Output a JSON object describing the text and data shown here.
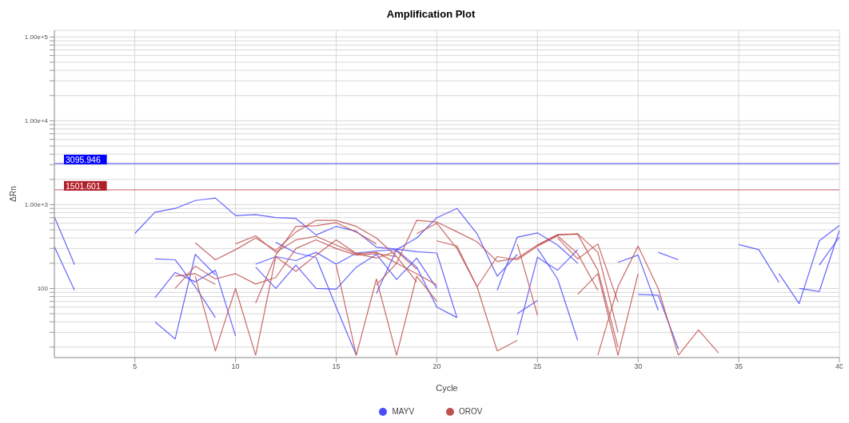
{
  "chart_data": {
    "type": "line",
    "title": "Amplification Plot",
    "xlabel": "Cycle",
    "ylabel": "ΔRn",
    "log": "y",
    "grid": true,
    "legend": "bottom",
    "marker": "none",
    "line_style": "solid",
    "xlim": [
      1,
      40
    ],
    "xticks": [
      5,
      10,
      15,
      20,
      25,
      30,
      35,
      40
    ],
    "ylim": [
      15,
      120000
    ],
    "yticks": [
      {
        "value": 20,
        "label": null
      },
      {
        "value": 30,
        "label": null
      },
      {
        "value": 40,
        "label": null
      },
      {
        "value": 50,
        "label": null
      },
      {
        "value": 60,
        "label": null
      },
      {
        "value": 70,
        "label": null
      },
      {
        "value": 80,
        "label": null
      },
      {
        "value": 90,
        "label": null
      },
      100,
      {
        "value": 200,
        "label": null
      },
      {
        "value": 300,
        "label": null
      },
      {
        "value": 400,
        "label": null
      },
      {
        "value": 500,
        "label": null
      },
      {
        "value": 600,
        "label": null
      },
      {
        "value": 700,
        "label": null
      },
      {
        "value": 800,
        "label": null
      },
      {
        "value": 900,
        "label": null
      },
      {
        "value": 1000,
        "label": "1.00e+3"
      },
      {
        "value": 2000,
        "label": null
      },
      {
        "value": 3000,
        "label": null
      },
      {
        "value": 4000,
        "label": null
      },
      {
        "value": 5000,
        "label": null
      },
      {
        "value": 6000,
        "label": null
      },
      {
        "value": 7000,
        "label": null
      },
      {
        "value": 8000,
        "label": null
      },
      {
        "value": 9000,
        "label": null
      },
      {
        "value": 10000,
        "label": "1.00e+4"
      },
      {
        "value": 20000,
        "label": null
      },
      {
        "value": 30000,
        "label": null
      },
      {
        "value": 40000,
        "label": null
      },
      {
        "value": 50000,
        "label": null
      },
      {
        "value": 60000,
        "label": null
      },
      {
        "value": 70000,
        "label": null
      },
      {
        "value": 80000,
        "label": null
      },
      {
        "value": 90000,
        "label": null
      },
      {
        "value": 100000,
        "label": "1.00e+5"
      }
    ],
    "ref_lines": [
      {
        "axis": "y",
        "value": 3095.946,
        "label": "3095.946",
        "color": "#0000ff"
      },
      {
        "axis": "y",
        "value": 1501.601,
        "label": "1501.601",
        "color": "#b0202a"
      }
    ],
    "series": [
      {
        "name": "MAYV",
        "color": "#4a4aff",
        "x": [
          5,
          6,
          7,
          8,
          9,
          10,
          11,
          12,
          13,
          14,
          15,
          16,
          17,
          18,
          19,
          20,
          21
        ],
        "values": [
          453,
          813,
          900,
          1120,
          1200,
          740,
          760,
          700,
          685,
          435,
          550,
          480,
          310,
          295,
          275,
          265,
          45
        ]
      },
      {
        "color": "#4a4aff",
        "x": [
          1,
          2
        ],
        "values": [
          716,
          193
        ]
      },
      {
        "color": "#4a4aff",
        "x": [
          1,
          2
        ],
        "values": [
          316,
          95
        ]
      },
      {
        "color": "#4a4aff",
        "x": [
          6,
          7,
          8,
          9
        ],
        "values": [
          225,
          220,
          105,
          45
        ]
      },
      {
        "color": "#4a4aff",
        "x": [
          6,
          7,
          8,
          9,
          10
        ],
        "values": [
          78,
          155,
          120,
          165,
          27
        ]
      },
      {
        "color": "#4a4aff",
        "x": [
          6,
          7,
          8,
          9
        ],
        "values": [
          40,
          25,
          255,
          145
        ]
      },
      {
        "color": "#4a4aff",
        "x": [
          11,
          12,
          13,
          14,
          15,
          16,
          17,
          18,
          19,
          20,
          21
        ],
        "values": [
          195,
          240,
          215,
          270,
          195,
          265,
          280,
          290,
          180,
          60,
          45
        ]
      },
      {
        "color": "#4a4aff",
        "x": [
          11,
          12,
          13,
          14,
          15,
          16,
          17,
          18,
          19,
          20
        ],
        "values": [
          180,
          100,
          190,
          100,
          98,
          180,
          255,
          128,
          230,
          100
        ]
      },
      {
        "color": "#4a4aff",
        "x": [
          12,
          13,
          14,
          15,
          16
        ],
        "values": [
          355,
          265,
          235,
          60,
          16
        ]
      },
      {
        "color": "#4a4aff",
        "x": [
          17,
          18,
          19,
          20,
          21,
          22,
          23,
          24
        ],
        "values": [
          87,
          290,
          400,
          700,
          900,
          450,
          140,
          255
        ]
      },
      {
        "color": "#4a4aff",
        "x": [
          23,
          24,
          25,
          26,
          27
        ],
        "values": [
          95,
          410,
          460,
          330,
          200
        ]
      },
      {
        "color": "#4a4aff",
        "x": [
          24,
          25
        ],
        "values": [
          50,
          72
        ]
      },
      {
        "color": "#4a4aff",
        "x": [
          24,
          25,
          26,
          27
        ],
        "values": [
          28,
          235,
          165,
          290
        ]
      },
      {
        "color": "#4a4aff",
        "x": [
          25,
          26,
          27
        ],
        "values": [
          300,
          130,
          24
        ]
      },
      {
        "color": "#4a4aff",
        "x": [
          29,
          30,
          31
        ],
        "values": [
          205,
          250,
          55
        ]
      },
      {
        "color": "#4a4aff",
        "x": [
          30,
          31,
          32
        ],
        "values": [
          85,
          83,
          19
        ]
      },
      {
        "color": "#4a4aff",
        "x": [
          31,
          32
        ],
        "values": [
          270,
          220
        ]
      },
      {
        "color": "#4a4aff",
        "x": [
          35,
          36,
          37
        ],
        "values": [
          335,
          290,
          118
        ]
      },
      {
        "color": "#4a4aff",
        "x": [
          37,
          38,
          39,
          40
        ],
        "values": [
          150,
          66,
          370,
          565
        ]
      },
      {
        "color": "#4a4aff",
        "x": [
          38,
          39,
          40
        ],
        "values": [
          100,
          92,
          495
        ]
      },
      {
        "color": "#4a4aff",
        "x": [
          39,
          40
        ],
        "values": [
          190,
          410
        ]
      },
      {
        "name": "OROV",
        "color": "#c0504d",
        "x": [
          7,
          8,
          9,
          10,
          11,
          12,
          13,
          14,
          15,
          16,
          17,
          18,
          19
        ],
        "values": [
          100,
          185,
          130,
          150,
          113,
          135,
          300,
          380,
          300,
          250,
          260,
          240,
          120
        ]
      },
      {
        "color": "#c0504d",
        "x": [
          7,
          8,
          9
        ],
        "values": [
          140,
          150,
          112
        ]
      },
      {
        "color": "#c0504d",
        "x": [
          8,
          9,
          10,
          11,
          12,
          13,
          14,
          15,
          16,
          17,
          18
        ],
        "values": [
          350,
          220,
          290,
          400,
          285,
          470,
          650,
          650,
          550,
          400,
          240
        ]
      },
      {
        "color": "#c0504d",
        "x": [
          8,
          9,
          10,
          11
        ],
        "values": [
          140,
          18,
          100,
          16
        ]
      },
      {
        "color": "#c0504d",
        "x": [
          10,
          11,
          12,
          13,
          14,
          15,
          16,
          17,
          18,
          19,
          20
        ],
        "values": [
          340,
          425,
          270,
          380,
          420,
          330,
          260,
          270,
          200,
          150,
          110
        ]
      },
      {
        "color": "#c0504d",
        "x": [
          11,
          12,
          13,
          14,
          15,
          16,
          17
        ],
        "values": [
          67,
          250,
          550,
          560,
          610,
          470,
          340
        ]
      },
      {
        "color": "#c0504d",
        "x": [
          11,
          12,
          13,
          14,
          15,
          16,
          17,
          18,
          19
        ],
        "values": [
          16,
          240,
          160,
          250,
          380,
          260,
          230,
          280,
          170
        ]
      },
      {
        "color": "#c0504d",
        "x": [
          15,
          16,
          17,
          18,
          19,
          20
        ],
        "values": [
          190,
          16,
          130,
          16,
          140,
          70
        ]
      },
      {
        "color": "#c0504d",
        "x": [
          17,
          18,
          19,
          20,
          21,
          22,
          23,
          24,
          25,
          26,
          27,
          28,
          29
        ],
        "values": [
          110,
          200,
          650,
          620,
          475,
          360,
          210,
          230,
          330,
          440,
          450,
          270,
          30
        ]
      },
      {
        "color": "#c0504d",
        "x": [
          20,
          21,
          22,
          23,
          24,
          25,
          26,
          27,
          28
        ],
        "values": [
          370,
          320,
          105,
          240,
          220,
          320,
          425,
          260,
          95
        ]
      },
      {
        "color": "#c0504d",
        "x": [
          19,
          20,
          21,
          22,
          23,
          24
        ],
        "values": [
          450,
          600,
          300,
          105,
          18,
          24
        ]
      },
      {
        "color": "#c0504d",
        "x": [
          24,
          25
        ],
        "values": [
          340,
          48
        ]
      },
      {
        "color": "#c0504d",
        "x": [
          25,
          26,
          27,
          28,
          29
        ],
        "values": [
          330,
          435,
          445,
          165,
          20
        ]
      },
      {
        "color": "#c0504d",
        "x": [
          27,
          28,
          29
        ],
        "values": [
          85,
          150,
          16
        ]
      },
      {
        "color": "#c0504d",
        "x": [
          26,
          27,
          28,
          29
        ],
        "values": [
          400,
          225,
          340,
          69
        ]
      },
      {
        "color": "#c0504d",
        "x": [
          28,
          29,
          30,
          31,
          32
        ],
        "values": [
          16,
          105,
          320,
          100,
          16
        ]
      },
      {
        "color": "#c0504d",
        "x": [
          29,
          30
        ],
        "values": [
          16,
          150
        ]
      },
      {
        "color": "#c0504d",
        "x": [
          32,
          33,
          34
        ],
        "values": [
          16,
          32,
          17
        ]
      }
    ]
  }
}
